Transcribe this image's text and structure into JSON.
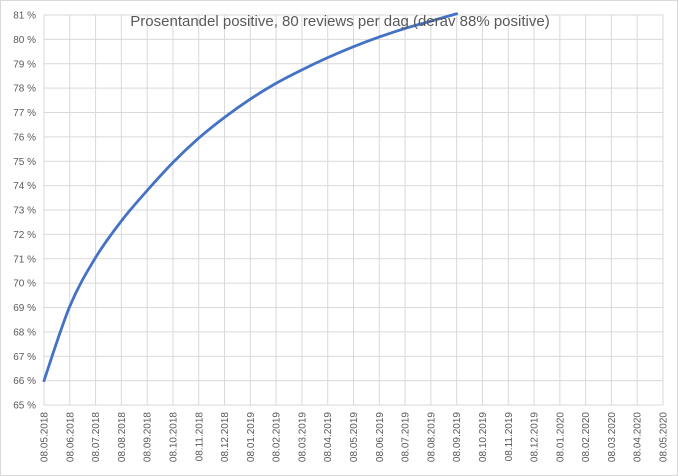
{
  "chart_data": {
    "type": "line",
    "title": "Prosentandel positive, 80 reviews per dag (derav 88% positive)",
    "xlabel": "",
    "ylabel": "",
    "ylim": [
      0.65,
      0.81
    ],
    "y_ticks": [
      0.65,
      0.66,
      0.67,
      0.68,
      0.69,
      0.7,
      0.71,
      0.72,
      0.73,
      0.74,
      0.75,
      0.76,
      0.77,
      0.78,
      0.79,
      0.8,
      0.81
    ],
    "y_tick_labels": [
      "65 %",
      "66 %",
      "67 %",
      "68 %",
      "69 %",
      "70 %",
      "71 %",
      "72 %",
      "73 %",
      "74 %",
      "75 %",
      "76 %",
      "77 %",
      "78 %",
      "79 %",
      "80 %",
      "81 %"
    ],
    "x_tick_labels": [
      "08.05.2018",
      "08.06.2018",
      "08.07.2018",
      "08.08.2018",
      "08.09.2018",
      "08.10.2018",
      "08.11.2018",
      "08.12.2018",
      "08.01.2019",
      "08.02.2019",
      "08.03.2019",
      "08.04.2019",
      "08.05.2019",
      "08.06.2019",
      "08.07.2019",
      "08.08.2019",
      "08.09.2019",
      "08.10.2019",
      "08.11.2019",
      "08.12.2019",
      "08.01.2020",
      "08.02.2020",
      "08.03.2020",
      "08.04.2020",
      "08.05.2020"
    ],
    "grid": true,
    "legend": "none",
    "series": [
      {
        "color": "#4472c4",
        "x": [
          "08.05.2018",
          "08.06.2018",
          "08.07.2018",
          "08.08.2018",
          "08.09.2018",
          "08.10.2018",
          "08.11.2018",
          "08.12.2018",
          "08.01.2019",
          "08.02.2019",
          "08.03.2019",
          "08.04.2019",
          "08.05.2019",
          "08.06.2019",
          "08.07.2019",
          "08.08.2019",
          "08.09.2019"
        ],
        "values": [
          0.66,
          0.6905,
          0.7105,
          0.7255,
          0.738,
          0.7495,
          0.7595,
          0.768,
          0.7755,
          0.782,
          0.7875,
          0.7925,
          0.797,
          0.801,
          0.8045,
          0.8075,
          0.8105
        ]
      }
    ]
  }
}
